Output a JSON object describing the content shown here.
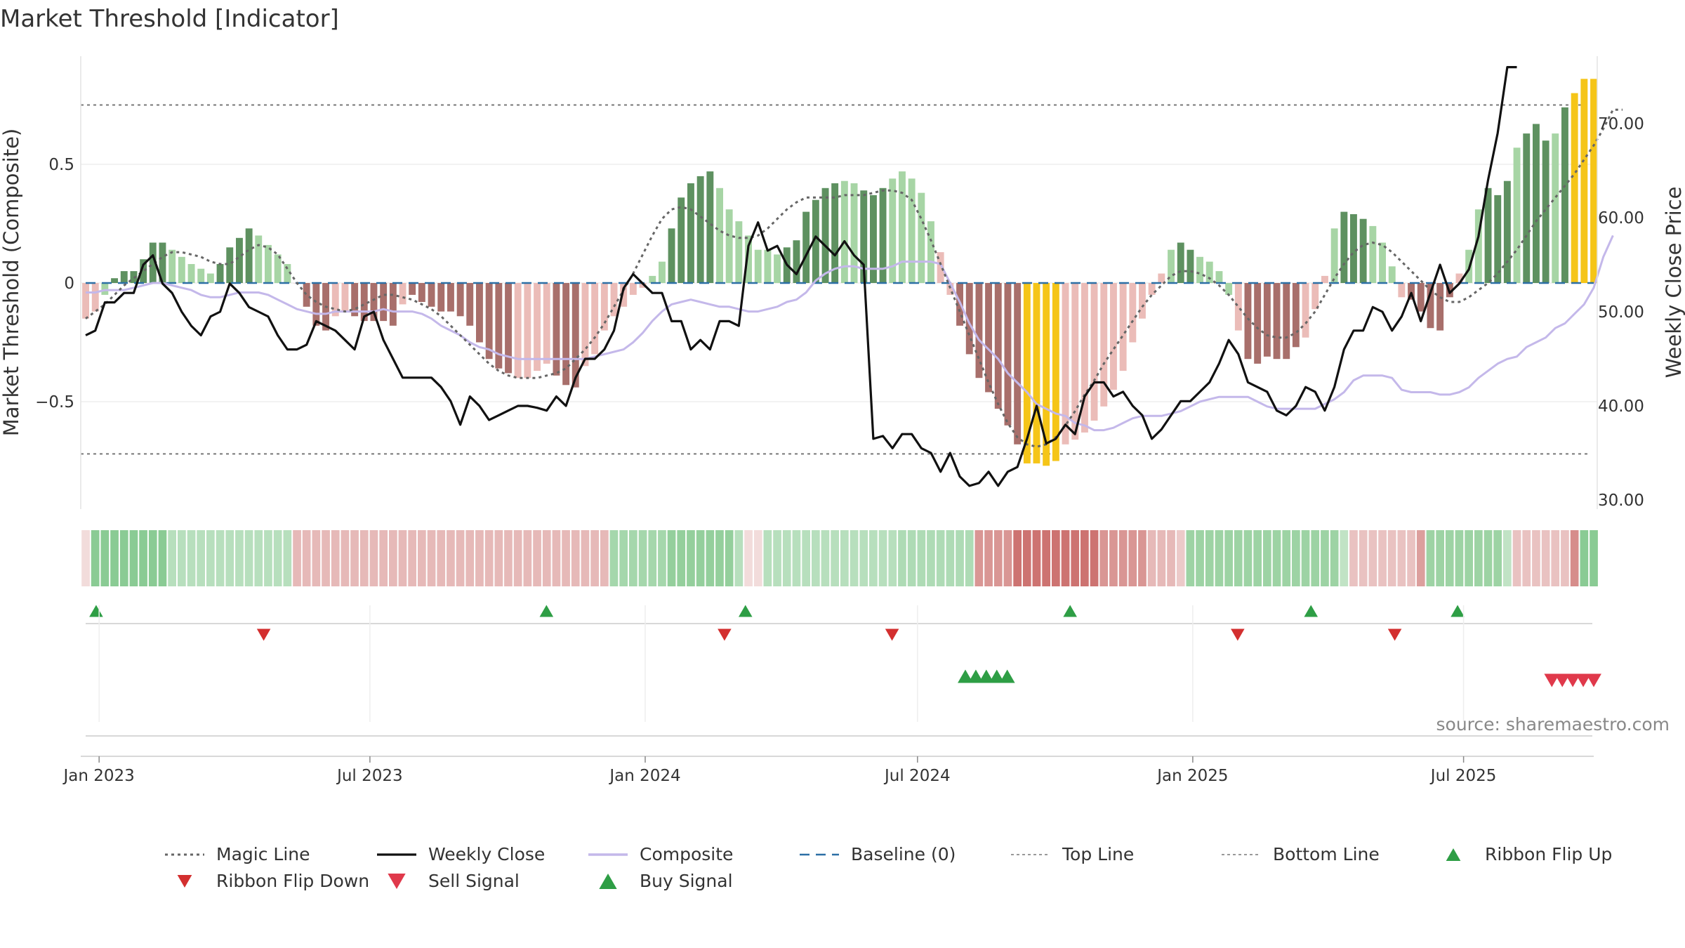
{
  "chart_data": {
    "type": "bar",
    "title": "Market Threshold [Indicator]",
    "ylabel": "Market Threshold (Composite)",
    "ylabel_right": "Weekly Close Price",
    "source": "source: sharemaestro.com",
    "ylim": [
      -0.95,
      0.95
    ],
    "ylim_right": [
      30,
      75
    ],
    "yticks": [
      {
        "value": 0.5,
        "label": "0.5"
      },
      {
        "value": 0,
        "label": "0"
      },
      {
        "value": -0.5,
        "label": "−0.5"
      }
    ],
    "yticks_right": [
      {
        "value": 70,
        "label": "70.00"
      },
      {
        "value": 60,
        "label": "60.00"
      },
      {
        "value": 50,
        "label": "50.00"
      },
      {
        "value": 40,
        "label": "40.00"
      },
      {
        "value": 30,
        "label": "30.00"
      }
    ],
    "x_start": "2022-12-23",
    "x_end": "2025-09-26",
    "xticks": [
      {
        "date": "2023-01-01",
        "label": "Jan 2023"
      },
      {
        "date": "2023-07-01",
        "label": "Jul 2023"
      },
      {
        "date": "2024-01-01",
        "label": "Jan 2024"
      },
      {
        "date": "2024-07-01",
        "label": "Jul 2024"
      },
      {
        "date": "2025-01-01",
        "label": "Jan 2025"
      },
      {
        "date": "2025-07-01",
        "label": "Jul 2025"
      }
    ],
    "top_line": 0.75,
    "bottom_line": -0.72,
    "composite_bars": [
      -0.15,
      -0.12,
      -0.05,
      0.02,
      0.05,
      0.05,
      0.1,
      0.17,
      0.17,
      0.14,
      0.11,
      0.08,
      0.06,
      0.04,
      0.08,
      0.15,
      0.19,
      0.23,
      0.2,
      0.16,
      0.12,
      0.08,
      0.0,
      -0.1,
      -0.18,
      -0.2,
      -0.14,
      -0.12,
      -0.14,
      -0.16,
      -0.16,
      -0.16,
      -0.18,
      -0.09,
      -0.05,
      -0.08,
      -0.1,
      -0.12,
      -0.12,
      -0.14,
      -0.18,
      -0.25,
      -0.32,
      -0.36,
      -0.38,
      -0.4,
      -0.4,
      -0.37,
      -0.34,
      -0.39,
      -0.43,
      -0.44,
      -0.35,
      -0.3,
      -0.2,
      -0.14,
      -0.1,
      -0.05,
      -0.02,
      0.03,
      0.09,
      0.23,
      0.36,
      0.42,
      0.45,
      0.47,
      0.4,
      0.31,
      0.26,
      0.2,
      0.14,
      0.14,
      0.12,
      0.15,
      0.18,
      0.3,
      0.35,
      0.4,
      0.42,
      0.43,
      0.42,
      0.39,
      0.37,
      0.4,
      0.44,
      0.47,
      0.44,
      0.38,
      0.26,
      0.13,
      -0.05,
      -0.18,
      -0.3,
      -0.4,
      -0.46,
      -0.53,
      -0.6,
      -0.68,
      -0.76,
      -0.76,
      -0.77,
      -0.75,
      -0.68,
      -0.66,
      -0.63,
      -0.58,
      -0.52,
      -0.45,
      -0.37,
      -0.25,
      -0.15,
      -0.05,
      0.04,
      0.14,
      0.17,
      0.14,
      0.11,
      0.09,
      0.05,
      -0.05,
      -0.2,
      -0.32,
      -0.34,
      -0.31,
      -0.32,
      -0.32,
      -0.27,
      -0.23,
      -0.11,
      0.03,
      0.23,
      0.3,
      0.29,
      0.27,
      0.24,
      0.17,
      0.07,
      -0.06,
      -0.07,
      -0.12,
      -0.19,
      -0.2,
      -0.06,
      0.04,
      0.14,
      0.31,
      0.4,
      0.37,
      0.43,
      0.57,
      0.63,
      0.67,
      0.6,
      0.63,
      0.74,
      0.8,
      0.86,
      0.86
    ],
    "bar_state_legend": "0 light-red, 1 dark-red, 2 light-green, 3 dark-green, 4 extreme-yellow",
    "bar_states": [
      0,
      0,
      2,
      3,
      3,
      3,
      3,
      3,
      3,
      2,
      2,
      2,
      2,
      2,
      3,
      3,
      3,
      3,
      2,
      2,
      2,
      2,
      0,
      1,
      1,
      1,
      0,
      0,
      1,
      1,
      1,
      1,
      1,
      0,
      1,
      1,
      1,
      1,
      1,
      1,
      1,
      1,
      1,
      1,
      1,
      0,
      0,
      0,
      0,
      1,
      1,
      1,
      0,
      0,
      0,
      0,
      0,
      0,
      0,
      2,
      2,
      3,
      3,
      3,
      3,
      3,
      2,
      2,
      2,
      2,
      2,
      2,
      2,
      3,
      3,
      3,
      3,
      3,
      3,
      2,
      2,
      3,
      3,
      3,
      2,
      2,
      2,
      2,
      2,
      0,
      0,
      1,
      1,
      1,
      1,
      1,
      1,
      1,
      4,
      4,
      4,
      4,
      0,
      0,
      0,
      0,
      0,
      0,
      0,
      0,
      0,
      0,
      0,
      2,
      3,
      3,
      2,
      2,
      2,
      2,
      0,
      1,
      1,
      1,
      1,
      1,
      1,
      0,
      0,
      0,
      2,
      3,
      3,
      3,
      2,
      2,
      2,
      0,
      1,
      1,
      1,
      1,
      1,
      0,
      2,
      2,
      3,
      3,
      3,
      2,
      3,
      3,
      3,
      2,
      3,
      4,
      4,
      4,
      4
    ],
    "composite_line": [
      -0.04,
      -0.04,
      -0.03,
      -0.03,
      -0.03,
      -0.02,
      -0.01,
      0.0,
      0.0,
      -0.01,
      -0.02,
      -0.03,
      -0.05,
      -0.06,
      -0.06,
      -0.05,
      -0.04,
      -0.04,
      -0.04,
      -0.05,
      -0.07,
      -0.09,
      -0.11,
      -0.12,
      -0.13,
      -0.13,
      -0.12,
      -0.12,
      -0.12,
      -0.12,
      -0.12,
      -0.11,
      -0.12,
      -0.12,
      -0.12,
      -0.13,
      -0.15,
      -0.18,
      -0.2,
      -0.22,
      -0.25,
      -0.27,
      -0.28,
      -0.3,
      -0.31,
      -0.32,
      -0.32,
      -0.32,
      -0.32,
      -0.32,
      -0.32,
      -0.32,
      -0.32,
      -0.31,
      -0.3,
      -0.29,
      -0.28,
      -0.25,
      -0.21,
      -0.16,
      -0.12,
      -0.09,
      -0.08,
      -0.07,
      -0.08,
      -0.09,
      -0.1,
      -0.1,
      -0.11,
      -0.12,
      -0.12,
      -0.11,
      -0.1,
      -0.08,
      -0.07,
      -0.04,
      0.01,
      0.04,
      0.06,
      0.07,
      0.07,
      0.06,
      0.06,
      0.06,
      0.07,
      0.09,
      0.09,
      0.09,
      0.09,
      0.08,
      0.0,
      -0.08,
      -0.17,
      -0.24,
      -0.28,
      -0.32,
      -0.38,
      -0.42,
      -0.46,
      -0.51,
      -0.53,
      -0.55,
      -0.56,
      -0.59,
      -0.6,
      -0.62,
      -0.62,
      -0.61,
      -0.59,
      -0.57,
      -0.56,
      -0.56,
      -0.56,
      -0.55,
      -0.54,
      -0.52,
      -0.5,
      -0.49,
      -0.48,
      -0.48,
      -0.48,
      -0.48,
      -0.5,
      -0.52,
      -0.53,
      -0.53,
      -0.53,
      -0.53,
      -0.53,
      -0.51,
      -0.49,
      -0.46,
      -0.41,
      -0.39,
      -0.39,
      -0.39,
      -0.4,
      -0.45,
      -0.46,
      -0.46,
      -0.46,
      -0.47,
      -0.47,
      -0.46,
      -0.44,
      -0.4,
      -0.37,
      -0.34,
      -0.32,
      -0.31,
      -0.27,
      -0.25,
      -0.23,
      -0.19,
      -0.17,
      -0.13,
      -0.09,
      -0.02,
      0.11,
      0.2
    ],
    "magic_line": [
      -0.15,
      -0.12,
      -0.09,
      -0.05,
      -0.01,
      0.02,
      0.05,
      0.08,
      0.11,
      0.13,
      0.13,
      0.12,
      0.11,
      0.09,
      0.08,
      0.08,
      0.11,
      0.14,
      0.16,
      0.15,
      0.12,
      0.06,
      0.0,
      -0.05,
      -0.08,
      -0.1,
      -0.11,
      -0.12,
      -0.11,
      -0.09,
      -0.07,
      -0.05,
      -0.05,
      -0.06,
      -0.07,
      -0.09,
      -0.11,
      -0.14,
      -0.18,
      -0.22,
      -0.26,
      -0.3,
      -0.34,
      -0.37,
      -0.39,
      -0.4,
      -0.4,
      -0.4,
      -0.39,
      -0.38,
      -0.36,
      -0.32,
      -0.28,
      -0.23,
      -0.17,
      -0.1,
      -0.03,
      0.04,
      0.12,
      0.2,
      0.27,
      0.31,
      0.32,
      0.31,
      0.28,
      0.25,
      0.22,
      0.2,
      0.19,
      0.19,
      0.2,
      0.23,
      0.27,
      0.31,
      0.34,
      0.36,
      0.36,
      0.36,
      0.36,
      0.37,
      0.37,
      0.37,
      0.38,
      0.39,
      0.39,
      0.38,
      0.35,
      0.27,
      0.18,
      0.08,
      -0.02,
      -0.12,
      -0.22,
      -0.32,
      -0.42,
      -0.51,
      -0.59,
      -0.65,
      -0.68,
      -0.69,
      -0.68,
      -0.65,
      -0.6,
      -0.54,
      -0.47,
      -0.41,
      -0.34,
      -0.28,
      -0.22,
      -0.16,
      -0.1,
      -0.05,
      -0.01,
      0.03,
      0.05,
      0.05,
      0.04,
      0.02,
      -0.01,
      -0.05,
      -0.1,
      -0.15,
      -0.19,
      -0.22,
      -0.23,
      -0.23,
      -0.21,
      -0.17,
      -0.12,
      -0.05,
      0.02,
      0.08,
      0.13,
      0.16,
      0.17,
      0.16,
      0.13,
      0.09,
      0.05,
      0.01,
      -0.03,
      -0.06,
      -0.08,
      -0.08,
      -0.06,
      -0.03,
      0.0,
      0.04,
      0.09,
      0.14,
      0.2,
      0.26,
      0.31,
      0.36,
      0.41,
      0.46,
      0.52,
      0.58,
      0.65,
      0.73,
      0.73
    ],
    "weekly_close": [
      47.5,
      48.0,
      51.0,
      51.0,
      52.0,
      52.0,
      55.0,
      56.0,
      53.0,
      52.0,
      50.0,
      48.5,
      47.5,
      49.5,
      50.0,
      53.0,
      52.0,
      50.5,
      50.0,
      49.5,
      47.5,
      46.0,
      46.0,
      46.5,
      49.0,
      48.5,
      48.0,
      47.0,
      46.0,
      49.5,
      50.0,
      47.0,
      45.0,
      43.0,
      43.0,
      43.0,
      43.0,
      42.0,
      40.5,
      38.0,
      41.0,
      40.0,
      38.5,
      39.0,
      39.5,
      40.0,
      40.0,
      39.8,
      39.5,
      41.0,
      40.0,
      43.0,
      45.0,
      45.0,
      46.0,
      48.0,
      52.5,
      54.0,
      53.0,
      52.0,
      52.0,
      49.0,
      49.0,
      46.0,
      47.0,
      46.0,
      49.0,
      49.0,
      48.5,
      57.0,
      59.5,
      56.5,
      57.0,
      55.0,
      54.0,
      56.0,
      58.0,
      57.0,
      56.0,
      57.5,
      56.0,
      55.0,
      36.5,
      36.8,
      35.5,
      37.0,
      37.0,
      35.5,
      35.0,
      33.0,
      35.0,
      32.5,
      31.5,
      31.8,
      33.0,
      31.5,
      33.0,
      33.5,
      36.5,
      40.0,
      36.0,
      36.5,
      38.0,
      37.0,
      41.0,
      42.5,
      42.5,
      41.0,
      41.5,
      40.0,
      39.0,
      36.5,
      37.5,
      39.0,
      40.5,
      40.5,
      41.5,
      42.5,
      44.5,
      47.0,
      45.5,
      42.5,
      42.0,
      41.5,
      39.5,
      39.0,
      40.0,
      42.0,
      41.5,
      39.5,
      42.0,
      46.0,
      48.0,
      48.0,
      50.5,
      50.0,
      48.0,
      49.5,
      52.0,
      49.0,
      52.0,
      55.0,
      52.0,
      53.0,
      54.5,
      58.0,
      64.0,
      69.0,
      76.0,
      76.0
    ],
    "ribbon_weeks": 158,
    "ribbon_alphas": [
      0.2,
      0.65,
      0.65,
      0.65,
      0.65,
      0.65,
      0.65,
      0.65,
      0.65,
      0.4,
      0.4,
      0.4,
      0.4,
      0.4,
      0.4,
      0.4,
      0.4,
      0.4,
      0.4,
      0.4,
      0.4,
      0.4,
      0.4,
      0.4,
      0.4,
      0.4,
      0.4,
      0.4,
      0.4,
      0.4,
      0.4,
      0.4,
      0.4,
      0.4,
      0.4,
      0.4,
      0.4,
      0.4,
      0.4,
      0.4,
      0.4,
      0.4,
      0.4,
      0.4,
      0.4,
      0.4,
      0.4,
      0.4,
      0.4,
      0.4,
      0.4,
      0.4,
      0.4,
      0.4,
      0.4,
      0.5,
      0.5,
      0.5,
      0.5,
      0.5,
      0.5,
      0.6,
      0.6,
      0.6,
      0.6,
      0.6,
      0.6,
      0.6,
      0.4,
      0.2,
      0.2,
      0.4,
      0.4,
      0.4,
      0.4,
      0.4,
      0.4,
      0.4,
      0.4,
      0.4,
      0.4,
      0.4,
      0.4,
      0.4,
      0.4,
      0.45,
      0.45,
      0.45,
      0.45,
      0.45,
      0.45,
      0.45,
      0.45,
      0.6,
      0.6,
      0.6,
      0.6,
      0.8,
      0.8,
      0.8,
      0.8,
      0.8,
      0.8,
      0.8,
      0.8,
      0.8,
      0.6,
      0.6,
      0.6,
      0.6,
      0.6,
      0.4,
      0.4,
      0.4,
      0.3,
      0.55,
      0.55,
      0.55,
      0.55,
      0.55,
      0.55,
      0.55,
      0.55,
      0.55,
      0.55,
      0.55,
      0.55,
      0.55,
      0.55,
      0.55,
      0.55,
      0.35,
      0.35,
      0.35,
      0.35,
      0.35,
      0.35,
      0.35,
      0.35,
      0.55,
      0.55,
      0.55,
      0.55,
      0.55,
      0.55,
      0.55,
      0.55,
      0.55,
      0.35,
      0.35,
      0.35,
      0.35,
      0.35,
      0.35,
      0.35,
      0.65,
      0.65,
      0.65,
      0.65,
      0.65,
      0.65,
      0.65,
      0.65,
      0.65,
      0.65,
      0.65,
      0.65,
      0.65,
      0.65,
      0.65,
      0.65
    ],
    "ribbon_sign": [
      "neg",
      "pos",
      "pos",
      "pos",
      "pos",
      "pos",
      "pos",
      "pos",
      "pos",
      "pos",
      "pos",
      "pos",
      "pos",
      "pos",
      "pos",
      "pos",
      "pos",
      "pos",
      "pos",
      "pos",
      "pos",
      "pos",
      "neg",
      "neg",
      "neg",
      "neg",
      "neg",
      "neg",
      "neg",
      "neg",
      "neg",
      "neg",
      "neg",
      "neg",
      "neg",
      "neg",
      "neg",
      "neg",
      "neg",
      "neg",
      "neg",
      "neg",
      "neg",
      "neg",
      "neg",
      "neg",
      "neg",
      "neg",
      "neg",
      "neg",
      "neg",
      "neg",
      "neg",
      "neg",
      "neg",
      "pos",
      "pos",
      "pos",
      "pos",
      "pos",
      "pos",
      "pos",
      "pos",
      "pos",
      "pos",
      "pos",
      "pos",
      "pos",
      "pos",
      "neg",
      "neg",
      "pos",
      "pos",
      "pos",
      "pos",
      "pos",
      "pos",
      "pos",
      "pos",
      "pos",
      "pos",
      "pos",
      "pos",
      "pos",
      "pos",
      "pos",
      "pos",
      "pos",
      "pos",
      "pos",
      "pos",
      "pos",
      "pos",
      "neg",
      "neg",
      "neg",
      "neg",
      "neg",
      "neg",
      "neg",
      "neg",
      "neg",
      "neg",
      "neg",
      "neg",
      "neg",
      "neg",
      "neg",
      "neg",
      "neg",
      "neg",
      "neg",
      "neg",
      "neg",
      "neg",
      "pos",
      "pos",
      "pos",
      "pos",
      "pos",
      "pos",
      "pos",
      "pos",
      "pos",
      "pos",
      "pos",
      "pos",
      "pos",
      "pos",
      "pos",
      "pos",
      "pos",
      "neg",
      "neg",
      "neg",
      "neg",
      "neg",
      "neg",
      "neg",
      "neg",
      "pos",
      "pos",
      "pos",
      "pos",
      "pos",
      "pos",
      "pos",
      "pos",
      "pos",
      "neg",
      "neg",
      "neg",
      "neg",
      "neg",
      "neg",
      "neg",
      "pos",
      "pos",
      "pos",
      "pos",
      "pos",
      "pos",
      "pos",
      "pos",
      "pos",
      "pos",
      "pos",
      "pos",
      "pos",
      "pos",
      "pos",
      "pos"
    ],
    "ribbon_flip_up": [
      "2022-12-30",
      "2023-10-27",
      "2024-03-08",
      "2024-10-11",
      "2025-03-21",
      "2025-06-27"
    ],
    "ribbon_flip_down": [
      "2023-04-21",
      "2024-02-23",
      "2024-06-14",
      "2025-01-31",
      "2025-05-16"
    ],
    "buy_signal": [
      "2024-08-02",
      "2024-08-09",
      "2024-08-16",
      "2024-08-23",
      "2024-08-30"
    ],
    "sell_signal": [
      "2025-08-29",
      "2025-09-05",
      "2025-09-12",
      "2025-09-19",
      "2025-09-26"
    ],
    "legend": [
      {
        "label": "Magic Line",
        "kind": "dotted"
      },
      {
        "label": "Weekly Close",
        "kind": "solid"
      },
      {
        "label": "Composite",
        "kind": "composite"
      },
      {
        "label": "Baseline (0)",
        "kind": "dashed"
      },
      {
        "label": "Top Line",
        "kind": "thin-dashed"
      },
      {
        "label": "Bottom Line",
        "kind": "thin-dashed"
      },
      {
        "label": "Ribbon Flip Up",
        "kind": "tri-up"
      },
      {
        "label": "Ribbon Flip Down",
        "kind": "tri-down"
      },
      {
        "label": "Sell Signal",
        "kind": "tri-down-big"
      },
      {
        "label": "Buy Signal",
        "kind": "tri-up-big"
      }
    ],
    "colors": {
      "dark_green": "#5e9160",
      "light_green": "#a7d5a5",
      "dark_red": "#a86f6b",
      "light_red": "#ebbcb8",
      "extreme": "#f5c518",
      "weekly_close": "#111111",
      "composite": "#c4b8ea",
      "magic_line": "#666666",
      "baseline": "#2c6fa5",
      "ribbon_green": "#4caf5a",
      "ribbon_red": "#c0504d",
      "flip_up": "#2e9e45",
      "flip_down": "#d32f2f",
      "buy": "#2e9e45",
      "sell": "#e0394b"
    }
  }
}
